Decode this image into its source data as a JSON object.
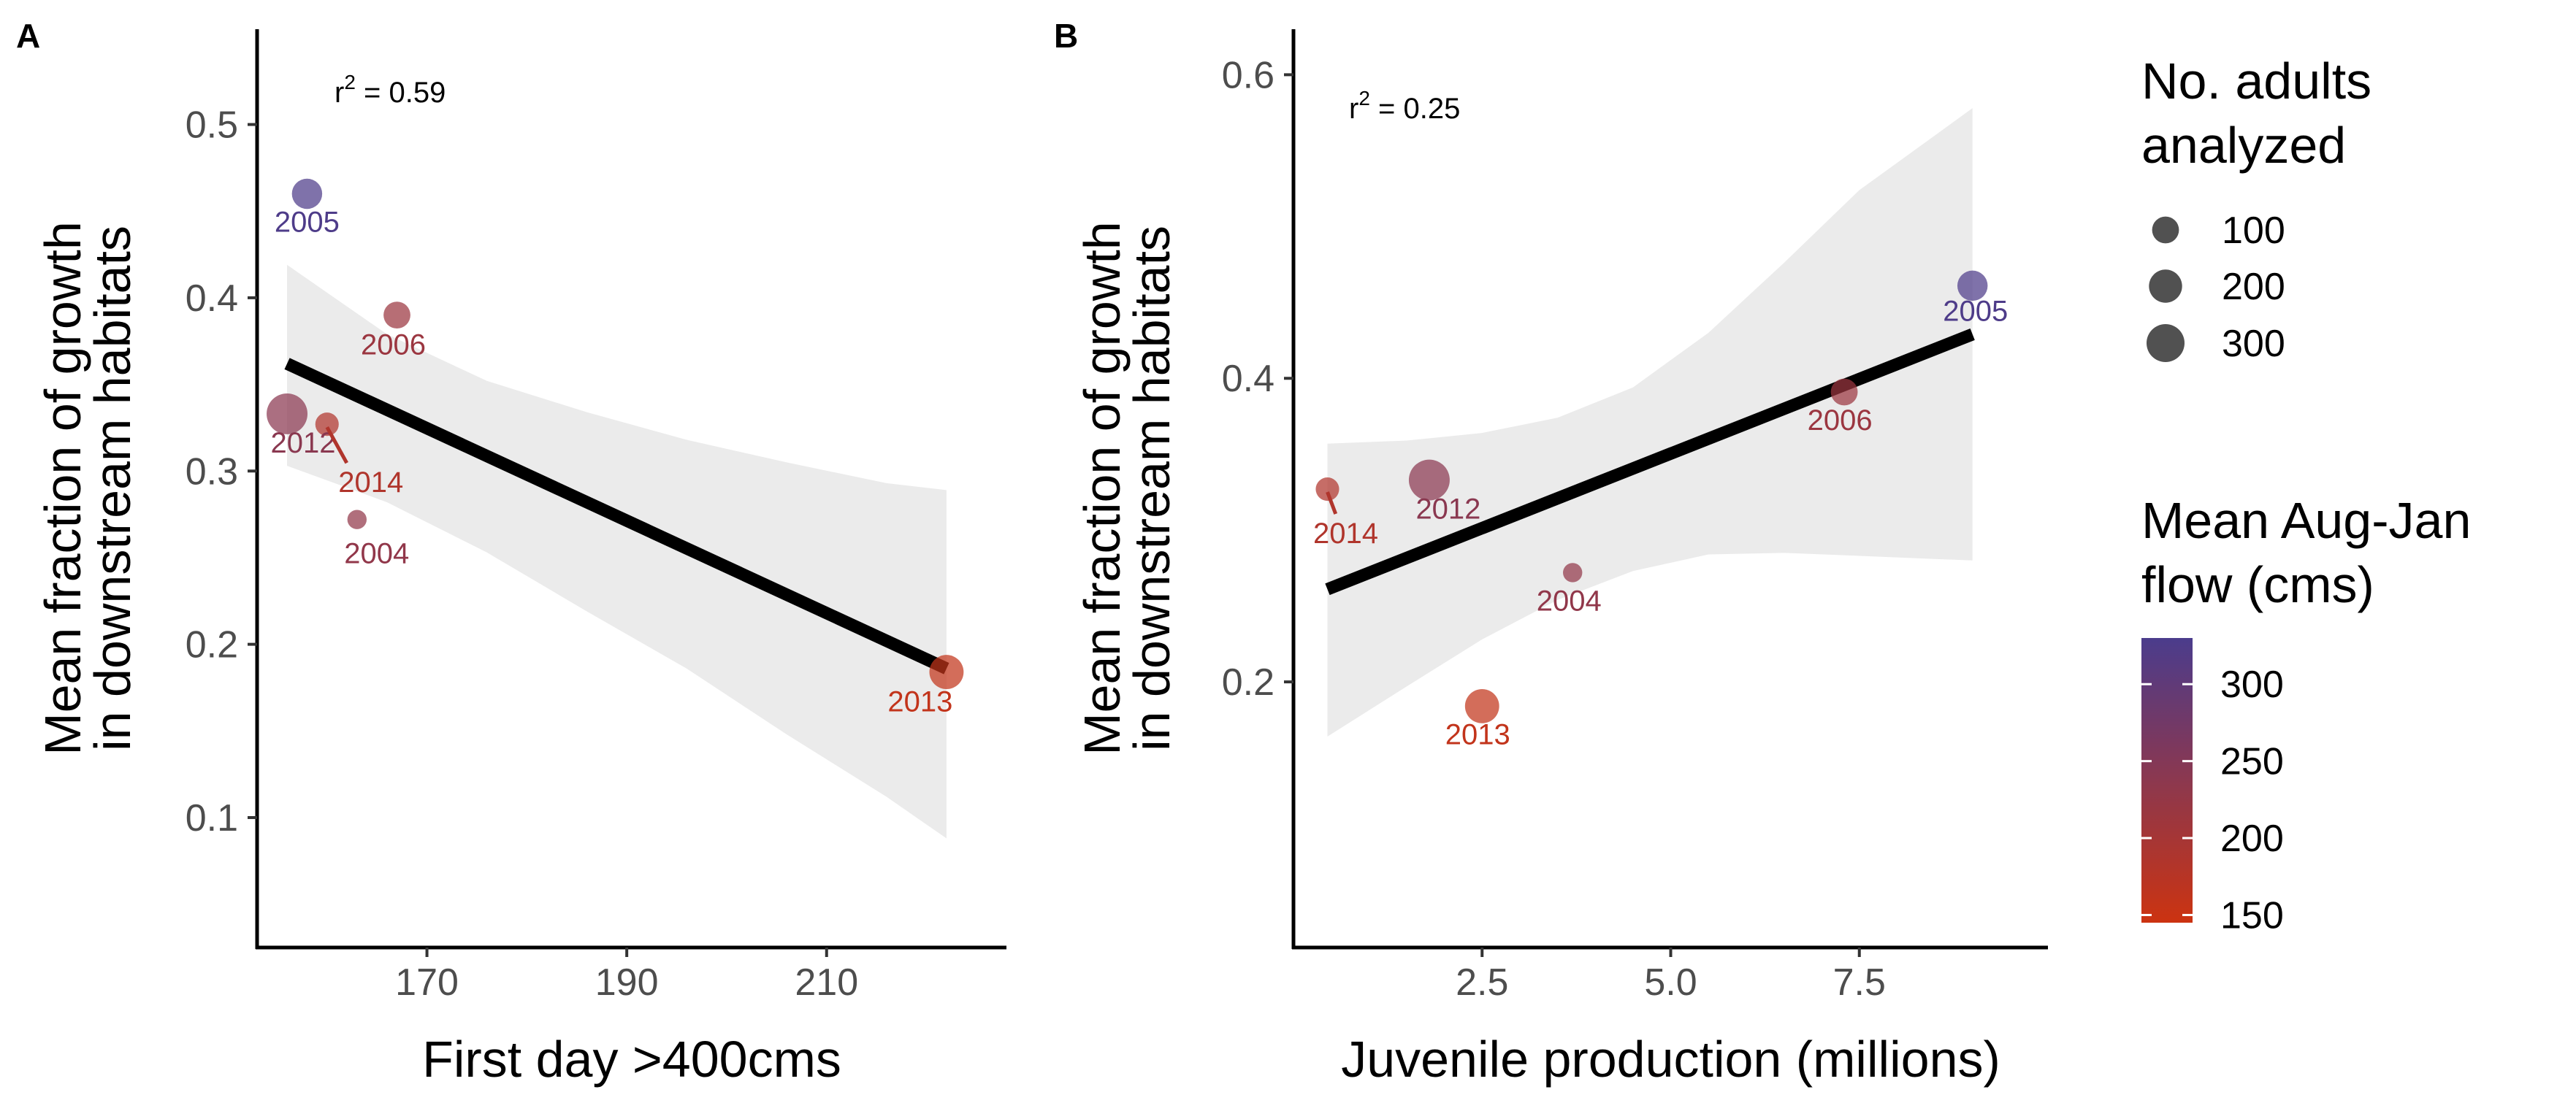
{
  "chart_data": [
    {
      "panel": "A",
      "type": "scatter",
      "annotation": "r",
      "annotation_sup": "2",
      "annotation_value": " = 0.59",
      "xlabel": "First day >400cms",
      "ylabel_lines": [
        "Mean fraction of growth",
        "in downstream habitats"
      ],
      "xlim": [
        153,
        228
      ],
      "ylim": [
        0.025,
        0.555
      ],
      "xticks": [
        170,
        190,
        210
      ],
      "yticks": [
        0.1,
        0.2,
        0.3,
        0.4,
        0.5
      ],
      "ytick_labels": [
        "0.1",
        "0.2",
        "0.3",
        "0.4",
        "0.5"
      ],
      "points": [
        {
          "year": "2005",
          "x": 158,
          "y": 0.46,
          "n": 150,
          "flow": 325
        },
        {
          "year": "2006",
          "x": 167,
          "y": 0.39,
          "n": 100,
          "flow": 215
        },
        {
          "year": "2012",
          "x": 156,
          "y": 0.333,
          "n": 370,
          "flow": 240
        },
        {
          "year": "2014",
          "x": 160,
          "y": 0.327,
          "n": 60,
          "flow": 185
        },
        {
          "year": "2004",
          "x": 163,
          "y": 0.272,
          "n": 25,
          "flow": 230
        },
        {
          "year": "2013",
          "x": 222,
          "y": 0.184,
          "n": 220,
          "flow": 160
        }
      ],
      "fit_line": {
        "x": [
          156,
          222
        ],
        "y": [
          0.362,
          0.186
        ]
      },
      "confidence_band": {
        "x": [
          156,
          166,
          176,
          186,
          196,
          206,
          216,
          222
        ],
        "upper": [
          0.419,
          0.379,
          0.352,
          0.334,
          0.318,
          0.305,
          0.293,
          0.289
        ],
        "lower": [
          0.303,
          0.282,
          0.253,
          0.219,
          0.186,
          0.148,
          0.112,
          0.088
        ]
      }
    },
    {
      "panel": "B",
      "type": "scatter",
      "annotation": "r",
      "annotation_sup": "2",
      "annotation_value": " = 0.25",
      "xlabel": "Juvenile production (millions)",
      "ylabel_lines": [
        "Mean fraction of growth",
        "in downstream habitats"
      ],
      "xlim": [
        0.0,
        10.0
      ],
      "ylim": [
        0.025,
        0.63
      ],
      "xticks": [
        2.5,
        5.0,
        7.5
      ],
      "xtick_labels": [
        "2.5",
        "5.0",
        "7.5"
      ],
      "yticks": [
        0.2,
        0.4,
        0.6
      ],
      "ytick_labels": [
        "0.2",
        "0.4",
        "0.6"
      ],
      "points": [
        {
          "year": "2005",
          "x": 9.0,
          "y": 0.461,
          "n": 150,
          "flow": 325
        },
        {
          "year": "2006",
          "x": 7.3,
          "y": 0.391,
          "n": 100,
          "flow": 215
        },
        {
          "year": "2012",
          "x": 1.8,
          "y": 0.333,
          "n": 370,
          "flow": 240
        },
        {
          "year": "2014",
          "x": 0.45,
          "y": 0.327,
          "n": 60,
          "flow": 185
        },
        {
          "year": "2004",
          "x": 3.7,
          "y": 0.272,
          "n": 25,
          "flow": 230
        },
        {
          "year": "2013",
          "x": 2.5,
          "y": 0.184,
          "n": 220,
          "flow": 160
        }
      ],
      "fit_line": {
        "x": [
          0.45,
          9.0
        ],
        "y": [
          0.261,
          0.429
        ]
      },
      "confidence_band": {
        "x": [
          0.45,
          1.5,
          2.5,
          3.5,
          4.5,
          5.5,
          6.5,
          7.5,
          8.5,
          9.0
        ],
        "upper": [
          0.357,
          0.359,
          0.364,
          0.374,
          0.394,
          0.43,
          0.476,
          0.524,
          0.56,
          0.578
        ],
        "lower": [
          0.164,
          0.197,
          0.228,
          0.254,
          0.273,
          0.284,
          0.285,
          0.283,
          0.281,
          0.28
        ]
      }
    }
  ],
  "legend": {
    "size_title_lines": [
      "No. adults",
      "analyzed"
    ],
    "size_entries": [
      {
        "label": "100",
        "n": 100
      },
      {
        "label": "200",
        "n": 200
      },
      {
        "label": "300",
        "n": 300
      }
    ],
    "color_title_lines": [
      "Mean Aug-Jan",
      "flow (cms)"
    ],
    "color_ticks": [
      {
        "label": "300",
        "value": 300
      },
      {
        "label": "250",
        "value": 250
      },
      {
        "label": "200",
        "value": 200
      },
      {
        "label": "150",
        "value": 150
      }
    ],
    "color_range": [
      145,
      330
    ],
    "low_color": "#CC3311",
    "high_color": "#4B3C8C"
  },
  "colors": {
    "fit_line": "#000000",
    "confidence_band": "#EBEBEB",
    "axis": "#000000",
    "tick_label": "#4D4D4D"
  }
}
